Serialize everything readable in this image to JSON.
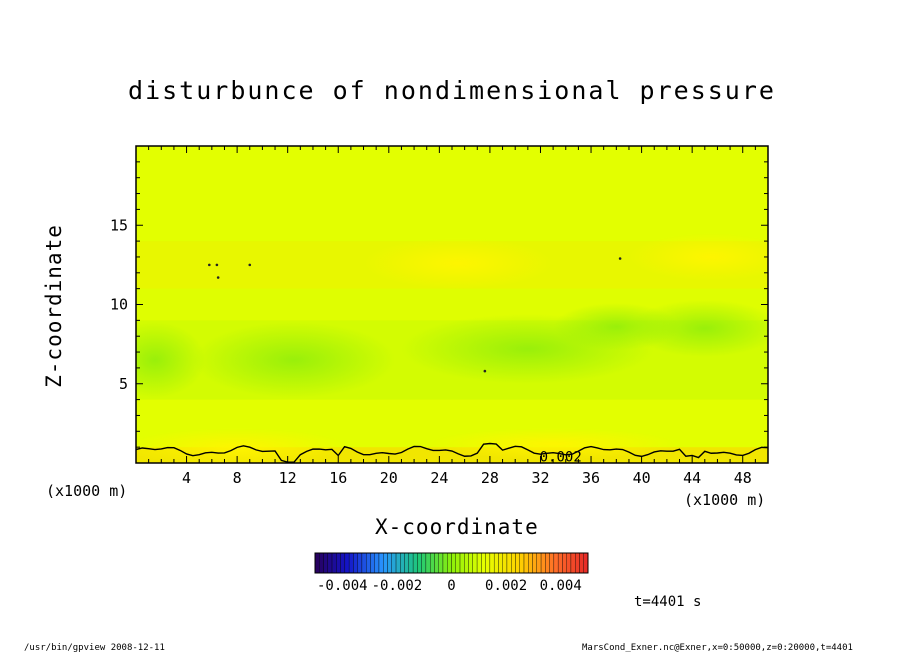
{
  "chart_data": {
    "type": "heatmap",
    "title": "disturbunce of nondimensional pressure",
    "xlabel": "X-coordinate",
    "ylabel": "Z-coordinate",
    "x_unit_left": "(x1000 m)",
    "x_unit_right": "(x1000 m)",
    "x_ticks": [
      "4",
      "8",
      "12",
      "16",
      "20",
      "24",
      "28",
      "32",
      "36",
      "40",
      "44",
      "48"
    ],
    "y_ticks": [
      "5",
      "10",
      "15"
    ],
    "xlim": [
      0,
      50
    ],
    "ylim": [
      0,
      20
    ],
    "contour_label": "0.002",
    "colorbar": {
      "tick_labels": [
        "-0.004",
        "-0.002",
        "0",
        "0.002",
        "0.004"
      ],
      "range": [
        -0.005,
        0.005
      ]
    },
    "field_bands": [
      {
        "z_range": [
          0,
          1
        ],
        "value": 0.0025
      },
      {
        "z_range": [
          1,
          4
        ],
        "value": 0.0012
      },
      {
        "z_range": [
          4,
          9
        ],
        "value": 0.0008
      },
      {
        "z_range": [
          9,
          11
        ],
        "value": 0.0011
      },
      {
        "z_range": [
          11,
          14
        ],
        "value": 0.0016
      },
      {
        "z_range": [
          14,
          20
        ],
        "value": 0.0012
      }
    ],
    "colors": {
      "background_field": "#dfff00",
      "low": "#9cf20a",
      "high": "#fff700",
      "contour": "#000000"
    }
  },
  "time_label": "t=4401 s",
  "footer": {
    "left": "/usr/bin/gpview   2008-12-11",
    "right": "MarsCond_Exner.nc@Exner,x=0:50000,z=0:20000,t=4401"
  }
}
